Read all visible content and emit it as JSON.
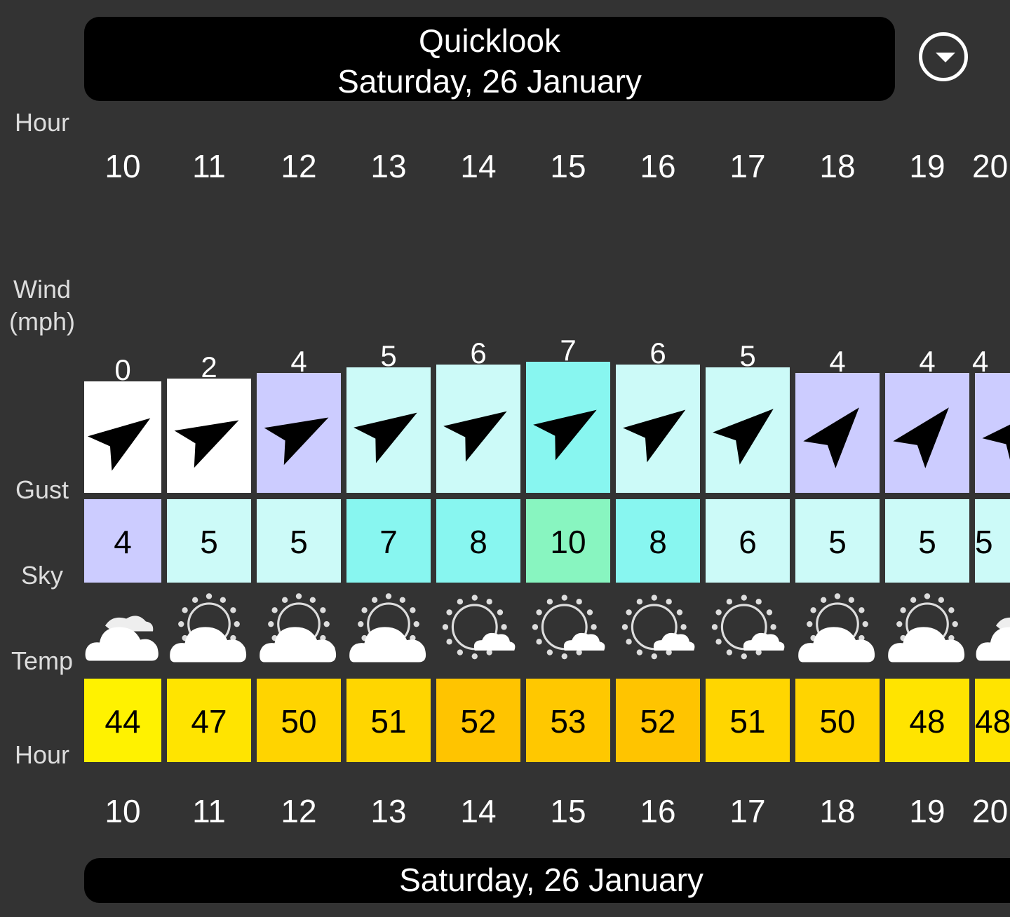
{
  "header": {
    "title": "Quicklook",
    "date": "Saturday, 26 January"
  },
  "dropdown_icon": "chevron-down-circle-icon",
  "labels": {
    "hour": "Hour",
    "wind": "Wind\n(mph)",
    "gust": "Gust",
    "sky": "Sky",
    "temp": "Temp",
    "hour_bottom": "Hour"
  },
  "columns": [
    {
      "hour": "10",
      "wind": "0",
      "dir": 55,
      "wind_color": "#ffffff",
      "gust": "4",
      "gust_color": "#ccccff",
      "sky": "cloudy",
      "temp": "44",
      "temp_color": "#fff200"
    },
    {
      "hour": "11",
      "wind": "2",
      "dir": 62,
      "wind_color": "#ffffff",
      "gust": "5",
      "gust_color": "#ccfaf8",
      "sky": "partly-cloudy",
      "temp": "47",
      "temp_color": "#ffe400"
    },
    {
      "hour": "12",
      "wind": "4",
      "dir": 62,
      "wind_color": "#ccccff",
      "gust": "5",
      "gust_color": "#ccfaf8",
      "sky": "partly-cloudy",
      "temp": "50",
      "temp_color": "#ffd400"
    },
    {
      "hour": "13",
      "wind": "5",
      "dir": 58,
      "wind_color": "#ccfaf8",
      "gust": "7",
      "gust_color": "#88f6f0",
      "sky": "partly-cloudy",
      "temp": "51",
      "temp_color": "#ffd600"
    },
    {
      "hour": "14",
      "wind": "6",
      "dir": 58,
      "wind_color": "#ccfaf8",
      "gust": "8",
      "gust_color": "#88f6f0",
      "sky": "mostly-sunny",
      "temp": "52",
      "temp_color": "#ffc400"
    },
    {
      "hour": "15",
      "wind": "7",
      "dir": 58,
      "wind_color": "#88f6f0",
      "gust": "10",
      "gust_color": "#88f5c0",
      "sky": "mostly-sunny",
      "temp": "53",
      "temp_color": "#ffc800"
    },
    {
      "hour": "16",
      "wind": "6",
      "dir": 55,
      "wind_color": "#ccfaf8",
      "gust": "8",
      "gust_color": "#88f6f0",
      "sky": "mostly-sunny",
      "temp": "52",
      "temp_color": "#ffc400"
    },
    {
      "hour": "17",
      "wind": "5",
      "dir": 50,
      "wind_color": "#ccfaf8",
      "gust": "6",
      "gust_color": "#ccfaf8",
      "sky": "mostly-sunny",
      "temp": "51",
      "temp_color": "#ffd600"
    },
    {
      "hour": "18",
      "wind": "4",
      "dir": 40,
      "wind_color": "#ccccff",
      "gust": "5",
      "gust_color": "#ccfaf8",
      "sky": "partly-cloudy",
      "temp": "50",
      "temp_color": "#ffd400"
    },
    {
      "hour": "19",
      "wind": "4",
      "dir": 40,
      "wind_color": "#ccccff",
      "gust": "5",
      "gust_color": "#ccfaf8",
      "sky": "partly-cloudy",
      "temp": "48",
      "temp_color": "#ffe400"
    },
    {
      "hour": "20",
      "wind": "4",
      "dir": 45,
      "wind_color": "#ccccff",
      "gust": "5",
      "gust_color": "#ccfaf8",
      "sky": "cloudy",
      "temp": "48",
      "temp_color": "#ffe400"
    }
  ],
  "footer": {
    "date": "Saturday, 26 January"
  }
}
